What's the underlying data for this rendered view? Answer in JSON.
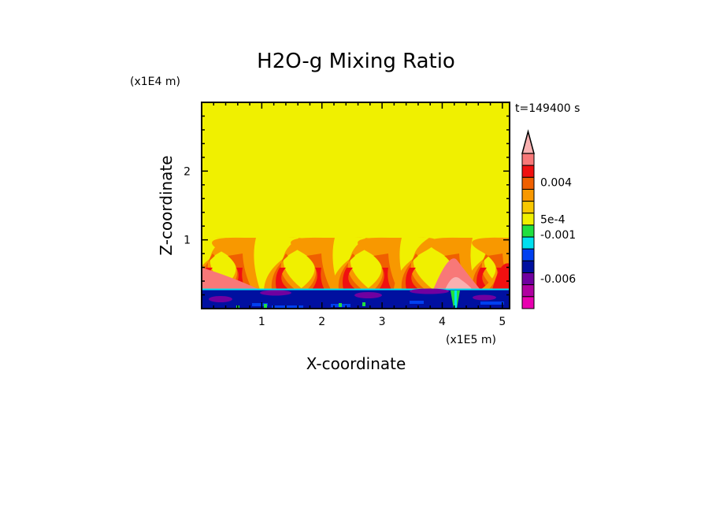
{
  "chart_data": {
    "type": "heatmap",
    "title": "H2O-g Mixing Ratio",
    "xlabel": "X-coordinate",
    "ylabel": "Z-coordinate",
    "x_unit": "(x1E5 m)",
    "y_unit": "(x1E4 m)",
    "time_label": "t=149400 s",
    "xlim": [
      0,
      5.12
    ],
    "ylim": [
      0,
      3.0
    ],
    "xticks": [
      "1",
      "2",
      "3",
      "4",
      "5"
    ],
    "xtick_values": [
      1,
      2,
      3,
      4,
      5
    ],
    "yticks": [
      "1",
      "2"
    ],
    "ytick_values": [
      1,
      2
    ],
    "colorbar": {
      "colors": [
        "#f8b0b0",
        "#f87878",
        "#f01010",
        "#f06000",
        "#f89800",
        "#f8c800",
        "#f0f000",
        "#20e040",
        "#00e0f0",
        "#0040f0",
        "#0010a0",
        "#7000a0",
        "#b000a0",
        "#e800b0"
      ],
      "labels": [
        {
          "text": "0.004",
          "level_index": 2.9
        },
        {
          "text": "5e-4",
          "level_index": 6.0
        },
        {
          "text": "-0.001",
          "level_index": 7.3
        },
        {
          "text": "-0.006",
          "level_index": 11.0
        }
      ]
    },
    "field_description_colors": {
      "background": "#f0f000",
      "lower_layer": "#0010a0"
    }
  }
}
